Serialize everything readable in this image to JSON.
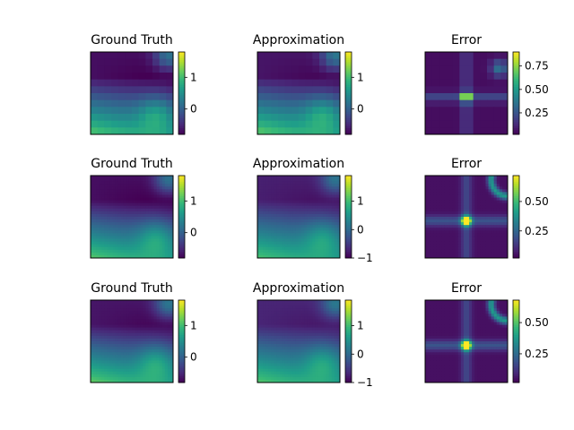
{
  "colormap": "viridis",
  "chart_data": [
    {
      "type": "heatmap",
      "title": "Ground Truth",
      "colorbar": {
        "range": [
          -0.8,
          1.8
        ],
        "ticks": [
          "0",
          "1"
        ],
        "tickvals": [
          0,
          1
        ]
      },
      "field": "gt_coarse"
    },
    {
      "type": "heatmap",
      "title": "Approximation",
      "colorbar": {
        "range": [
          -0.8,
          1.8
        ],
        "ticks": [
          "0",
          "1"
        ],
        "tickvals": [
          0,
          1
        ]
      },
      "field": "approx_coarse"
    },
    {
      "type": "heatmap",
      "title": "Error",
      "colorbar": {
        "range": [
          0.02,
          0.9
        ],
        "ticks": [
          "0.25",
          "0.50",
          "0.75"
        ],
        "tickvals": [
          0.25,
          0.5,
          0.75
        ]
      },
      "field": "err_coarse"
    },
    {
      "type": "heatmap",
      "title": "Ground Truth",
      "colorbar": {
        "range": [
          -0.8,
          1.8
        ],
        "ticks": [
          "0",
          "1"
        ],
        "tickvals": [
          0,
          1
        ]
      },
      "field": "gt_smooth"
    },
    {
      "type": "heatmap",
      "title": "Approximation",
      "colorbar": {
        "range": [
          -1.0,
          1.9
        ],
        "ticks": [
          "−1",
          "0",
          "1"
        ],
        "tickvals": [
          -1,
          0,
          1
        ]
      },
      "field": "approx_smooth"
    },
    {
      "type": "heatmap",
      "title": "Error",
      "colorbar": {
        "range": [
          0.02,
          0.72
        ],
        "ticks": [
          "0.25",
          "0.50"
        ],
        "tickvals": [
          0.25,
          0.5
        ]
      },
      "field": "err_smooth"
    },
    {
      "type": "heatmap",
      "title": "Ground Truth",
      "colorbar": {
        "range": [
          -0.8,
          1.8
        ],
        "ticks": [
          "0",
          "1"
        ],
        "tickvals": [
          0,
          1
        ]
      },
      "field": "gt_smooth2"
    },
    {
      "type": "heatmap",
      "title": "Approximation",
      "colorbar": {
        "range": [
          -1.0,
          1.9
        ],
        "ticks": [
          "−1",
          "0",
          "1"
        ],
        "tickvals": [
          -1,
          0,
          1
        ]
      },
      "field": "approx_smooth2"
    },
    {
      "type": "heatmap",
      "title": "Error",
      "colorbar": {
        "range": [
          0.02,
          0.68
        ],
        "ticks": [
          "0.25",
          "0.50"
        ],
        "tickvals": [
          0.25,
          0.5
        ]
      },
      "field": "err_smooth2"
    }
  ]
}
